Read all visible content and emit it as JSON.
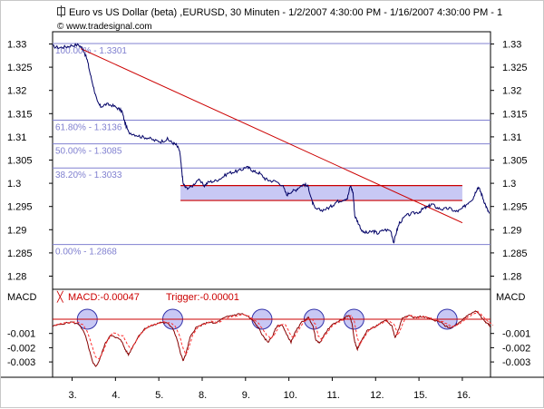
{
  "header": {
    "title": "Euro vs US Dollar (beta) ,EURUSD, 30 Minuten - 1/2/2007 4:30:00 PM - 1/16/2007 4:30:00 PM - 1",
    "copyright": "© www.tradesignal.com",
    "icon": "chart-symbol-icon"
  },
  "chart_data": [
    {
      "type": "line",
      "title": "Euro vs US Dollar (beta) ,EURUSD, 30 Minuten - 1/2/2007 4:30:00 PM - 1/16/2007 4:30:00 PM",
      "series_color": "#000066",
      "ylim": [
        1.278,
        1.332
      ],
      "y_ticks": [
        "1.33",
        "1.325",
        "1.32",
        "1.315",
        "1.31",
        "1.305",
        "1.3",
        "1.295",
        "1.29",
        "1.285",
        "1.28"
      ],
      "y_tick_values": [
        1.33,
        1.325,
        1.32,
        1.315,
        1.31,
        1.305,
        1.3,
        1.295,
        1.29,
        1.285,
        1.28
      ],
      "x_ticks": [
        "3.",
        "4.",
        "5.",
        "8.",
        "9.",
        "10.",
        "11.",
        "12.",
        "15.",
        "16."
      ],
      "x_tick_index": [
        1,
        2,
        3,
        4,
        5,
        6,
        7,
        8,
        9,
        10
      ],
      "x_range": [
        0.55,
        10.65
      ],
      "grid": false,
      "fibonacci_levels": [
        {
          "label": "100.00% - 1.3301",
          "value": 1.3301
        },
        {
          "label": "61.80% - 1.3136",
          "value": 1.3136
        },
        {
          "label": "50.00% - 1.3085",
          "value": 1.3085
        },
        {
          "label": "38.20% - 1.3033",
          "value": 1.3033
        },
        {
          "label": "0.00% - 1.2868",
          "value": 1.2868
        }
      ],
      "fib_color": "#8080d0",
      "trendline": {
        "color": "#cc0000",
        "from": [
          1.2,
          1.329
        ],
        "to": [
          10.0,
          1.2915
        ]
      },
      "range_box": {
        "x_from": 3.5,
        "x_to": 10.0,
        "top": 1.2995,
        "bottom": 1.2963,
        "fill": "#c8c8f4",
        "edge": "#cc0000"
      },
      "price_points": [
        [
          0.55,
          1.3295
        ],
        [
          0.7,
          1.3292
        ],
        [
          0.85,
          1.3294
        ],
        [
          1.0,
          1.3297
        ],
        [
          1.15,
          1.3298
        ],
        [
          1.25,
          1.329
        ],
        [
          1.35,
          1.3265
        ],
        [
          1.42,
          1.3235
        ],
        [
          1.5,
          1.3205
        ],
        [
          1.58,
          1.3175
        ],
        [
          1.66,
          1.3165
        ],
        [
          1.78,
          1.317
        ],
        [
          1.92,
          1.3168
        ],
        [
          2.05,
          1.3162
        ],
        [
          2.15,
          1.3155
        ],
        [
          2.22,
          1.313
        ],
        [
          2.3,
          1.311
        ],
        [
          2.45,
          1.3105
        ],
        [
          2.6,
          1.31
        ],
        [
          2.75,
          1.3098
        ],
        [
          2.9,
          1.3092
        ],
        [
          3.05,
          1.309
        ],
        [
          3.2,
          1.3095
        ],
        [
          3.3,
          1.3088
        ],
        [
          3.4,
          1.3083
        ],
        [
          3.48,
          1.307
        ],
        [
          3.52,
          1.3035
        ],
        [
          3.56,
          1.3
        ],
        [
          3.62,
          1.299
        ],
        [
          3.75,
          1.2992
        ],
        [
          3.9,
          1.3008
        ],
        [
          4.05,
          1.2995
        ],
        [
          4.15,
          1.3003
        ],
        [
          4.3,
          1.3005
        ],
        [
          4.45,
          1.3012
        ],
        [
          4.6,
          1.3022
        ],
        [
          4.75,
          1.3025
        ],
        [
          4.9,
          1.3028
        ],
        [
          5.0,
          1.3035
        ],
        [
          5.1,
          1.3032
        ],
        [
          5.2,
          1.3025
        ],
        [
          5.32,
          1.3022
        ],
        [
          5.45,
          1.301
        ],
        [
          5.55,
          1.3006
        ],
        [
          5.7,
          1.3004
        ],
        [
          5.85,
          1.2996
        ],
        [
          5.95,
          1.2975
        ],
        [
          6.05,
          1.2982
        ],
        [
          6.15,
          1.2985
        ],
        [
          6.25,
          1.2993
        ],
        [
          6.35,
          1.2998
        ],
        [
          6.45,
          1.2992
        ],
        [
          6.52,
          1.2965
        ],
        [
          6.6,
          1.2945
        ],
        [
          6.75,
          1.2942
        ],
        [
          6.9,
          1.2946
        ],
        [
          7.0,
          1.2952
        ],
        [
          7.1,
          1.296
        ],
        [
          7.25,
          1.2965
        ],
        [
          7.35,
          1.2968
        ],
        [
          7.42,
          1.2995
        ],
        [
          7.48,
          1.298
        ],
        [
          7.52,
          1.293
        ],
        [
          7.6,
          1.2915
        ],
        [
          7.7,
          1.2895
        ],
        [
          7.82,
          1.2893
        ],
        [
          7.95,
          1.2897
        ],
        [
          8.05,
          1.2892
        ],
        [
          8.2,
          1.29
        ],
        [
          8.35,
          1.2898
        ],
        [
          8.42,
          1.2872
        ],
        [
          8.48,
          1.2895
        ],
        [
          8.55,
          1.2915
        ],
        [
          8.7,
          1.293
        ],
        [
          8.85,
          1.2935
        ],
        [
          9.0,
          1.2938
        ],
        [
          9.1,
          1.2945
        ],
        [
          9.22,
          1.295
        ],
        [
          9.3,
          1.2955
        ],
        [
          9.42,
          1.2947
        ],
        [
          9.55,
          1.2944
        ],
        [
          9.7,
          1.2946
        ],
        [
          9.85,
          1.2939
        ],
        [
          9.95,
          1.2942
        ],
        [
          10.05,
          1.295
        ],
        [
          10.15,
          1.296
        ],
        [
          10.25,
          1.2968
        ],
        [
          10.32,
          1.2985
        ],
        [
          10.37,
          1.2992
        ],
        [
          10.43,
          1.298
        ],
        [
          10.5,
          1.2962
        ],
        [
          10.57,
          1.2945
        ],
        [
          10.62,
          1.2935
        ]
      ]
    },
    {
      "type": "line",
      "title": "MACD",
      "ylabel": "MACD",
      "legend": [
        {
          "name": "MACD:-0.00047",
          "color": "#cc0000"
        },
        {
          "name": "Trigger:-0.00001",
          "color": "#cc0000"
        }
      ],
      "ylim": [
        -0.0034,
        0.0008
      ],
      "y_ticks": [
        "-0.001",
        "-0.002",
        "-0.003"
      ],
      "y_tick_values": [
        -0.001,
        -0.002,
        -0.003
      ],
      "zero_line_color": "#cc0000",
      "highlight_circles_x": [
        1.35,
        3.32,
        5.38,
        6.58,
        7.5,
        9.65
      ],
      "highlight_color": "#c8c8f4",
      "macd_points": [
        [
          0.55,
          -0.0005
        ],
        [
          0.8,
          -0.0003
        ],
        [
          1.0,
          -0.0002
        ],
        [
          1.18,
          -0.0004
        ],
        [
          1.3,
          -0.0011
        ],
        [
          1.4,
          -0.0022
        ],
        [
          1.48,
          -0.0031
        ],
        [
          1.56,
          -0.0033
        ],
        [
          1.64,
          -0.0028
        ],
        [
          1.75,
          -0.0018
        ],
        [
          1.88,
          -0.0011
        ],
        [
          2.0,
          -0.0013
        ],
        [
          2.12,
          -0.0014
        ],
        [
          2.22,
          -0.0021
        ],
        [
          2.3,
          -0.0025
        ],
        [
          2.42,
          -0.0018
        ],
        [
          2.55,
          -0.0011
        ],
        [
          2.7,
          -0.0006
        ],
        [
          2.9,
          -0.0004
        ],
        [
          3.05,
          -0.0002
        ],
        [
          3.2,
          -0.0003
        ],
        [
          3.32,
          -0.0006
        ],
        [
          3.42,
          -0.0014
        ],
        [
          3.5,
          -0.0024
        ],
        [
          3.56,
          -0.0029
        ],
        [
          3.62,
          -0.0025
        ],
        [
          3.72,
          -0.0013
        ],
        [
          3.85,
          -0.0006
        ],
        [
          4.0,
          -0.0004
        ],
        [
          4.15,
          -0.0002
        ],
        [
          4.3,
          -0.0003
        ],
        [
          4.45,
          0.0
        ],
        [
          4.6,
          0.0002
        ],
        [
          4.75,
          0.0003
        ],
        [
          4.9,
          0.0004
        ],
        [
          5.05,
          0.0002
        ],
        [
          5.2,
          -0.0002
        ],
        [
          5.32,
          -0.0007
        ],
        [
          5.42,
          -0.0013
        ],
        [
          5.52,
          -0.0016
        ],
        [
          5.62,
          -0.0012
        ],
        [
          5.72,
          -0.0005
        ],
        [
          5.85,
          -0.0004
        ],
        [
          5.95,
          -0.0011
        ],
        [
          6.05,
          -0.0016
        ],
        [
          6.15,
          -0.0009
        ],
        [
          6.3,
          -0.0002
        ],
        [
          6.45,
          0.0001
        ],
        [
          6.55,
          -0.0004
        ],
        [
          6.62,
          -0.0014
        ],
        [
          6.7,
          -0.0017
        ],
        [
          6.8,
          -0.0012
        ],
        [
          6.95,
          -0.0005
        ],
        [
          7.1,
          -0.0002
        ],
        [
          7.25,
          0.0
        ],
        [
          7.38,
          0.0003
        ],
        [
          7.45,
          -0.0002
        ],
        [
          7.52,
          -0.0016
        ],
        [
          7.58,
          -0.0021
        ],
        [
          7.66,
          -0.0016
        ],
        [
          7.8,
          -0.0008
        ],
        [
          7.95,
          -0.0006
        ],
        [
          8.1,
          -0.0003
        ],
        [
          8.25,
          -0.0001
        ],
        [
          8.38,
          -0.0005
        ],
        [
          8.45,
          -0.0013
        ],
        [
          8.52,
          -0.0008
        ],
        [
          8.62,
          0.0001
        ],
        [
          8.75,
          0.0003
        ],
        [
          8.9,
          0.0001
        ],
        [
          9.05,
          0.0002
        ],
        [
          9.2,
          0.0001
        ],
        [
          9.35,
          -0.0001
        ],
        [
          9.5,
          -0.0002
        ],
        [
          9.62,
          -0.0005
        ],
        [
          9.75,
          -0.0006
        ],
        [
          9.9,
          -0.0003
        ],
        [
          10.05,
          0.0001
        ],
        [
          10.18,
          0.0004
        ],
        [
          10.3,
          0.0006
        ],
        [
          10.4,
          0.0003
        ],
        [
          10.5,
          -0.0001
        ],
        [
          10.58,
          -0.0003
        ],
        [
          10.65,
          -0.0005
        ]
      ]
    }
  ]
}
